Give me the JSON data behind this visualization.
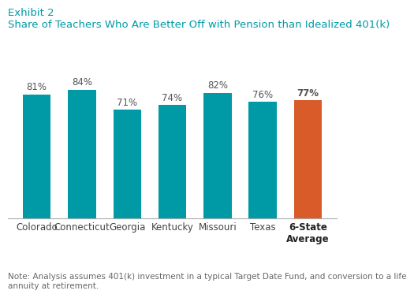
{
  "categories": [
    "Colorado",
    "Connecticut",
    "Georgia",
    "Kentucky",
    "Missouri",
    "Texas",
    "6-State\nAverage"
  ],
  "values": [
    81,
    84,
    71,
    74,
    82,
    76,
    77
  ],
  "bar_colors": [
    "#009AA6",
    "#009AA6",
    "#009AA6",
    "#009AA6",
    "#009AA6",
    "#009AA6",
    "#D95B2A"
  ],
  "value_labels": [
    "81%",
    "84%",
    "71%",
    "74%",
    "82%",
    "76%",
    "77%"
  ],
  "exhibit_label": "Exhibit 2",
  "title": "Share of Teachers Who Are Better Off with Pension than Idealized 401(k)",
  "note": "Note: Analysis assumes 401(k) investment in a typical Target Date Fund, and conversion to a life\nannuity at retirement.",
  "title_color": "#009AA6",
  "exhibit_color": "#009AA6",
  "note_color": "#666666",
  "background_color": "#FFFFFF",
  "ylim": [
    0,
    100
  ],
  "bar_width": 0.62,
  "title_fontsize": 9.5,
  "exhibit_fontsize": 9.5,
  "label_fontsize": 8.5,
  "tick_fontsize": 8.5,
  "note_fontsize": 7.5
}
